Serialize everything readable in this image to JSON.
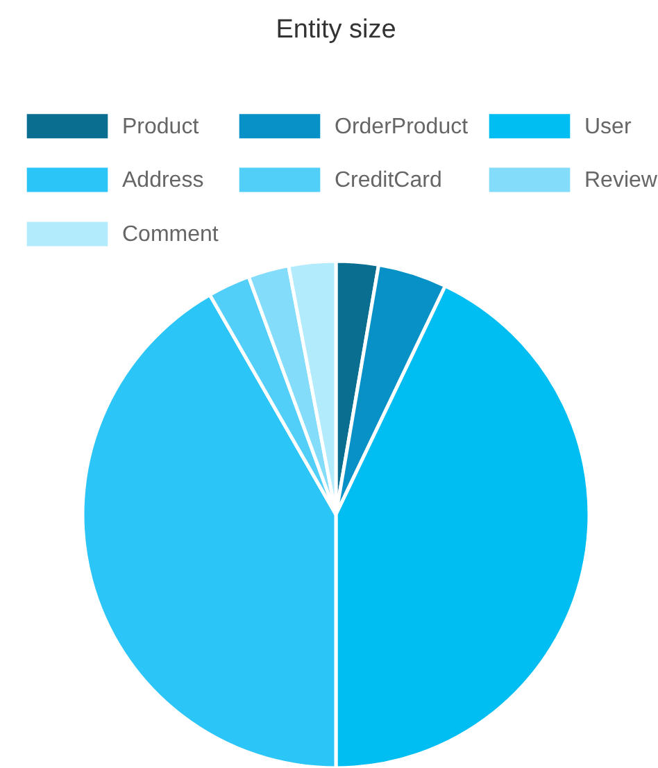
{
  "chart_data": {
    "type": "pie",
    "title": "Entity size",
    "categories": [
      "Product",
      "OrderProduct",
      "User",
      "Address",
      "CreditCard",
      "Review",
      "Comment"
    ],
    "values": [
      2.7,
      4.4,
      42.9,
      41.7,
      2.7,
      2.6,
      3.0
    ],
    "colors": [
      "#0a6e91",
      "#0891c6",
      "#00bdf2",
      "#2bc5f7",
      "#52cff8",
      "#82dcfa",
      "#b2ebfc"
    ],
    "legend": "top"
  }
}
